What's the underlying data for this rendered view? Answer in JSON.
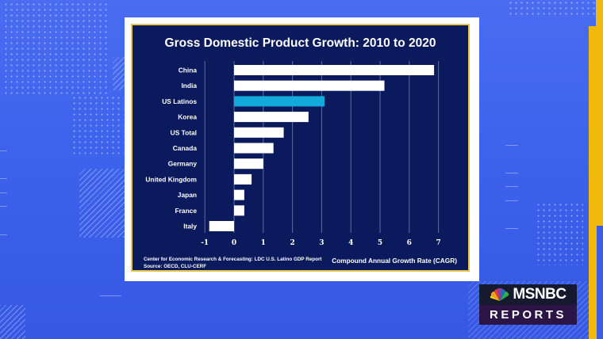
{
  "broadcast": {
    "brand": "MSNBC",
    "program": "REPORTS",
    "colors": {
      "background_blue": "#3d62ec",
      "accent_gold": "#f2b90d",
      "panel_navy": "#0b1a5c",
      "highlight_bar": "#12a9db",
      "bar_default": "#ffffff"
    }
  },
  "chart_data": {
    "type": "bar",
    "orientation": "horizontal",
    "title": "Gross Domestic Product Growth: 2010 to 2020",
    "xlabel": "Compound Annual Growth Rate (CAGR)",
    "ylabel": "",
    "categories": [
      "China",
      "India",
      "US Latinos",
      "Korea",
      "US Total",
      "Canada",
      "Germany",
      "United Kingdom",
      "Japan",
      "France",
      "Italy"
    ],
    "values": [
      6.85,
      5.15,
      3.1,
      2.55,
      1.7,
      1.35,
      1.0,
      0.6,
      0.35,
      0.35,
      -0.85
    ],
    "highlight": "US Latinos",
    "xlim": [
      -1,
      7
    ],
    "xticks": [
      "-1",
      "0",
      "1",
      "2",
      "3",
      "4",
      "5",
      "6",
      "7"
    ],
    "grid": true,
    "legend": "none",
    "footnote": [
      "Center for Economic Research & Forecasting: LDC U.S.  Latino GDP Report",
      "Source: OECD, CLU-CERF"
    ]
  }
}
